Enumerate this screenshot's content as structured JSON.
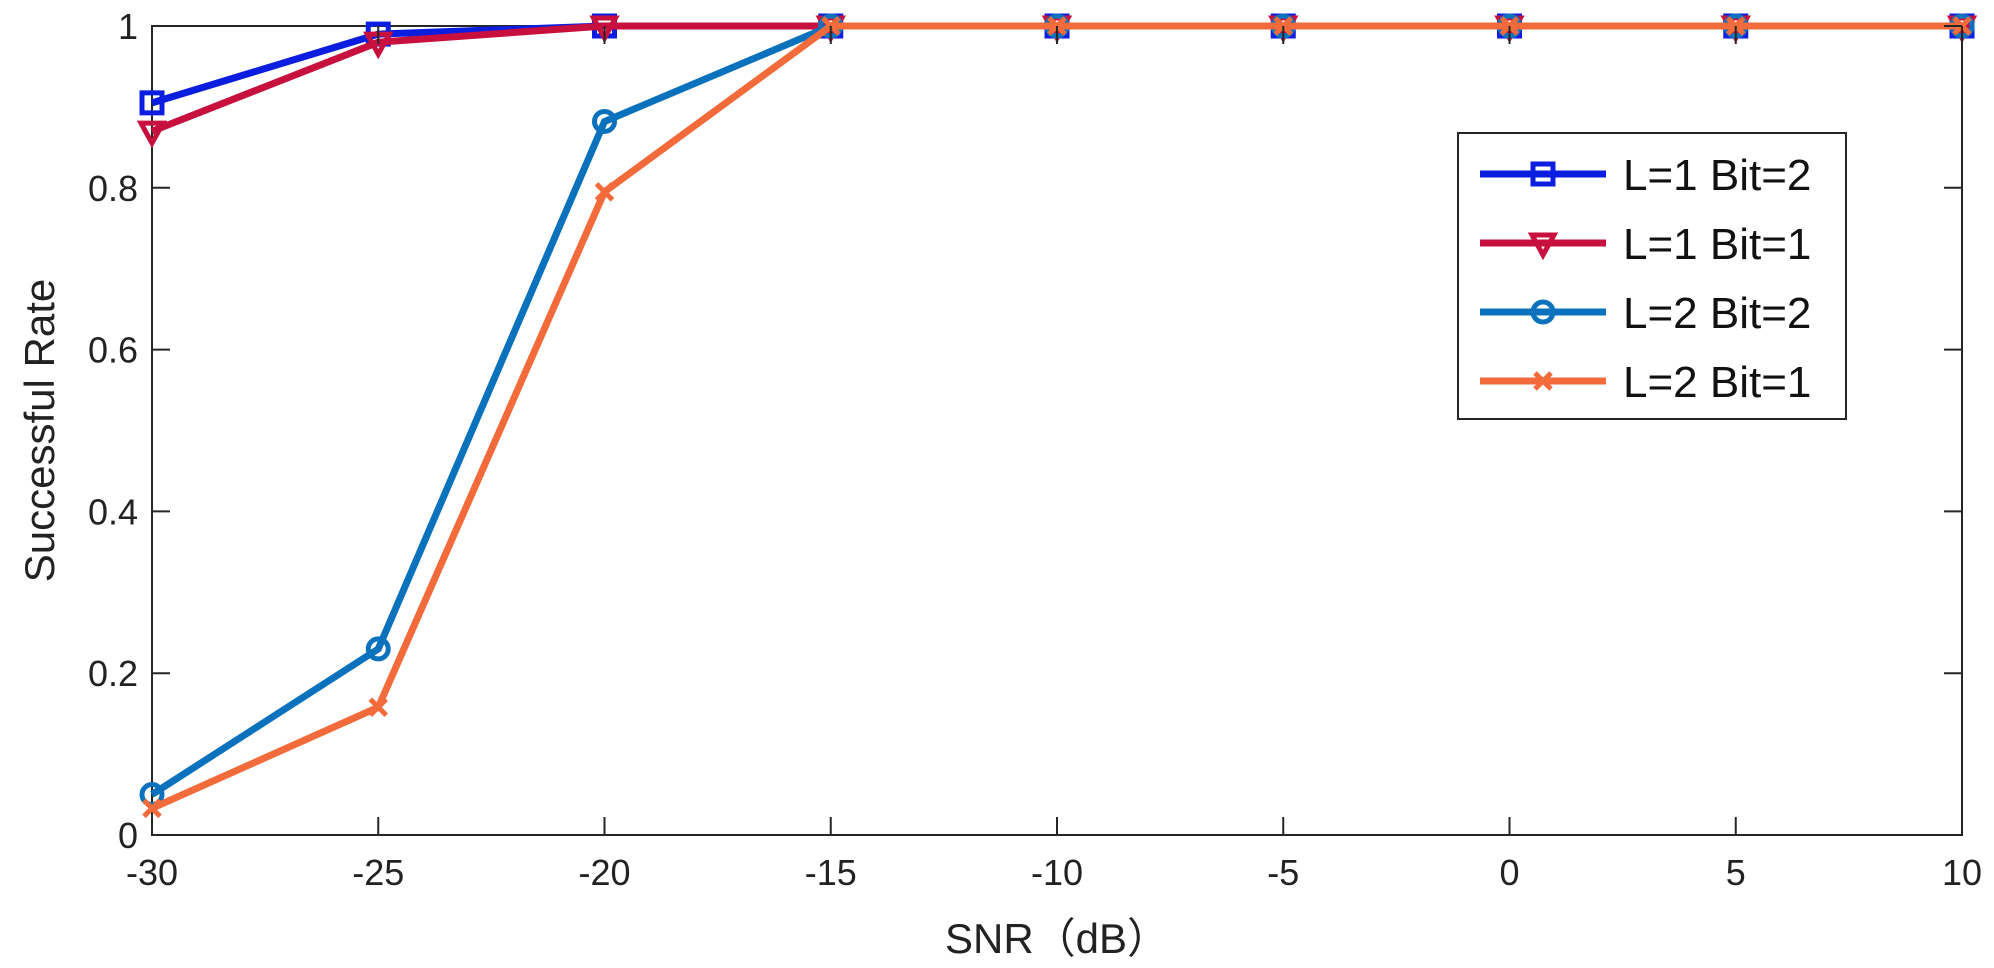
{
  "chart_data": {
    "type": "line",
    "title": "",
    "xlabel": "SNR（dB）",
    "ylabel": "Successful Rate",
    "x": [
      -30,
      -25,
      -20,
      -15,
      -10,
      -5,
      0,
      5,
      10
    ],
    "xlim": [
      -30,
      10
    ],
    "ylim": [
      0,
      1
    ],
    "xticks": [
      -30,
      -25,
      -20,
      -15,
      -10,
      -5,
      0,
      5,
      10
    ],
    "xtick_labels": [
      "-30",
      "-25",
      "-20",
      "-15",
      "-10",
      "-5",
      "0",
      "5",
      "10"
    ],
    "yticks": [
      0,
      0.2,
      0.4,
      0.6,
      0.8,
      1
    ],
    "ytick_labels": [
      "0",
      "0.2",
      "0.4",
      "0.6",
      "0.8",
      "1"
    ],
    "grid": false,
    "legend_position": "top-right",
    "series": [
      {
        "name": "L=1 Bit=2",
        "color": "#0b1ee0",
        "marker": "square",
        "values": [
          0.905,
          0.99,
          1.0,
          1.0,
          1.0,
          1.0,
          1.0,
          1.0,
          1.0
        ]
      },
      {
        "name": "L=1 Bit=1",
        "color": "#c8103e",
        "marker": "triangle-down",
        "values": [
          0.87,
          0.98,
          1.0,
          1.0,
          1.0,
          1.0,
          1.0,
          1.0,
          1.0
        ]
      },
      {
        "name": "L=2 Bit=2",
        "color": "#0a72bd",
        "marker": "circle",
        "values": [
          0.05,
          0.23,
          0.882,
          1.0,
          1.0,
          1.0,
          1.0,
          1.0,
          1.0
        ]
      },
      {
        "name": "L=2 Bit=1",
        "color": "#f36b3b",
        "marker": "x",
        "values": [
          0.033,
          0.158,
          0.795,
          1.0,
          1.0,
          1.0,
          1.0,
          1.0,
          1.0
        ]
      }
    ]
  }
}
